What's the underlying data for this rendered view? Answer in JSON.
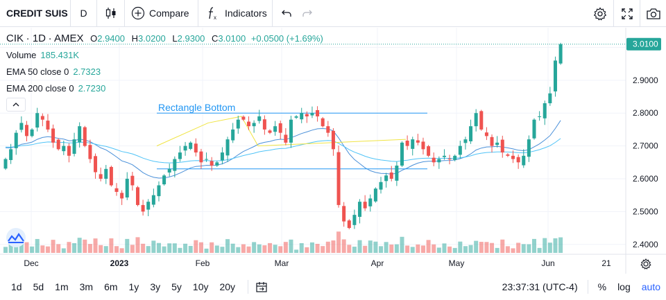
{
  "toolbar": {
    "symbol": "CREDIT SUIS",
    "interval": "D",
    "compare_label": "Compare",
    "indicators_label": "Indicators",
    "icons": [
      "candles-icon",
      "plus-circle-icon",
      "fx-icon",
      "undo-icon",
      "redo-icon",
      "gear-icon",
      "fullscreen-icon",
      "camera-icon"
    ]
  },
  "legend": {
    "symbol": "CIK",
    "interval": "1D",
    "exchange": "AMEX",
    "open_label": "O",
    "open": "2.9400",
    "high_label": "H",
    "high": "3.0200",
    "low_label": "L",
    "low": "2.9300",
    "close_label": "C",
    "close": "3.0100",
    "change": "+0.0500 (+1.69%)",
    "volume_label": "Volume",
    "volume": "185.431K",
    "ema50_label": "EMA 50 close 0",
    "ema50": "2.7323",
    "ema200_label": "EMA 200 close 0",
    "ema200": "2.7230"
  },
  "drawing": {
    "label": "Rectangle Bottom"
  },
  "price_axis": {
    "ticks": [
      "2.9000",
      "2.8000",
      "2.7000",
      "2.6000",
      "2.5000",
      "2.4000"
    ],
    "last_price": "3.0100"
  },
  "time_axis": {
    "ticks": [
      "Dec",
      "2023",
      "Feb",
      "Mar",
      "Apr",
      "May",
      "Jun",
      "21"
    ]
  },
  "bottom_bar": {
    "ranges": [
      "1d",
      "5d",
      "1m",
      "3m",
      "6m",
      "1y",
      "3y",
      "5y",
      "10y",
      "20y"
    ],
    "clock": "23:37:31 (UTC-4)",
    "percent_label": "%",
    "log_label": "log",
    "auto_label": "auto"
  },
  "colors": {
    "up": "#26a69a",
    "down": "#ef5350",
    "ema50": "#4fc3f7",
    "ema200": "#4a90d9",
    "drawing": "#2196f3",
    "trend": "#f0e442",
    "last_price_bg": "#26a69a"
  },
  "chart_data": {
    "type": "candlestick",
    "symbol": "CIK",
    "y_range": [
      2.37,
      3.06
    ],
    "closes": [
      2.66,
      2.69,
      2.74,
      2.77,
      2.73,
      2.75,
      2.8,
      2.78,
      2.75,
      2.71,
      2.69,
      2.7,
      2.67,
      2.72,
      2.76,
      2.7,
      2.66,
      2.62,
      2.6,
      2.63,
      2.58,
      2.56,
      2.54,
      2.6,
      2.58,
      2.52,
      2.5,
      2.53,
      2.55,
      2.58,
      2.61,
      2.63,
      2.66,
      2.68,
      2.7,
      2.71,
      2.68,
      2.65,
      2.66,
      2.64,
      2.65,
      2.68,
      2.72,
      2.75,
      2.78,
      2.78,
      2.76,
      2.77,
      2.79,
      2.75,
      2.74,
      2.76,
      2.74,
      2.71,
      2.78,
      2.79,
      2.8,
      2.79,
      2.8,
      2.79,
      2.76,
      2.74,
      2.69,
      2.52,
      2.47,
      2.45,
      2.49,
      2.53,
      2.51,
      2.54,
      2.57,
      2.59,
      2.61,
      2.6,
      2.64,
      2.71,
      2.7,
      2.72,
      2.71,
      2.69,
      2.67,
      2.65,
      2.66,
      2.67,
      2.66,
      2.67,
      2.7,
      2.72,
      2.76,
      2.8,
      2.75,
      2.73,
      2.7,
      2.71,
      2.68,
      2.67,
      2.66,
      2.65,
      2.67,
      2.72,
      2.78,
      2.79,
      2.83,
      2.86,
      2.96,
      3.01
    ],
    "volume_last": "185.431K",
    "ema50_last": 2.7323,
    "ema200_last": 2.723
  }
}
